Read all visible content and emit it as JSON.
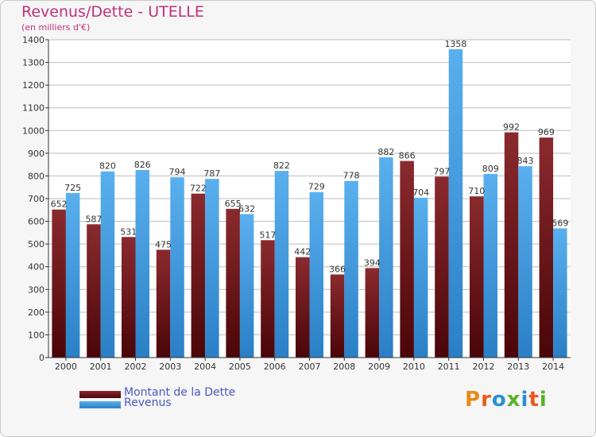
{
  "header": {
    "title": "Revenus/Dette - UTELLE",
    "subtitle": "(en milliers d'€)"
  },
  "chart_data": {
    "type": "bar",
    "title": "Revenus/Dette - UTELLE",
    "subtitle": "(en milliers d'€)",
    "xlabel": "",
    "ylabel": "",
    "ylim": [
      0,
      1400
    ],
    "yticks": [
      0,
      100,
      200,
      300,
      400,
      500,
      600,
      700,
      800,
      900,
      1000,
      1100,
      1200,
      1300,
      1400
    ],
    "grid": true,
    "legend_position": "bottom-left",
    "categories": [
      "2000",
      "2001",
      "2002",
      "2003",
      "2004",
      "2005",
      "2006",
      "2007",
      "2008",
      "2009",
      "2010",
      "2011",
      "2012",
      "2013",
      "2014"
    ],
    "series": [
      {
        "name": "Montant de la Dette",
        "color": "#7a1d22",
        "values": [
          652,
          587,
          531,
          475,
          722,
          655,
          517,
          442,
          366,
          394,
          866,
          797,
          710,
          992,
          969
        ]
      },
      {
        "name": "Revenus",
        "color": "#4aa3e6",
        "values": [
          725,
          820,
          826,
          794,
          787,
          632,
          822,
          729,
          778,
          882,
          704,
          1358,
          809,
          843,
          569
        ]
      }
    ]
  },
  "legend": {
    "items": [
      {
        "label": "Montant de la Dette",
        "color": "#7a1d22"
      },
      {
        "label": "Revenus",
        "color": "#4aa3e6"
      }
    ]
  },
  "logo": {
    "text": "Proxiti"
  }
}
